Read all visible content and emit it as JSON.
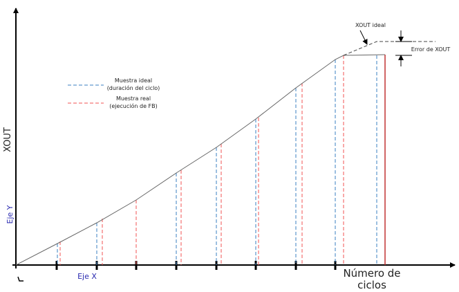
{
  "labels": {
    "xout_ideal": "XOUT ideal",
    "error_xout": "Error de XOUT",
    "y_axis": "XOUT",
    "eje_y": "Eje Y",
    "eje_x": "Eje X",
    "x_axis_line1": "Número de",
    "x_axis_line2": "ciclos"
  },
  "legend": [
    {
      "line1": "Muestra ideal",
      "line2": "(duración del ciclo)"
    },
    {
      "line1": "Muestra real",
      "line2": "(ejecución de FB)"
    }
  ]
}
